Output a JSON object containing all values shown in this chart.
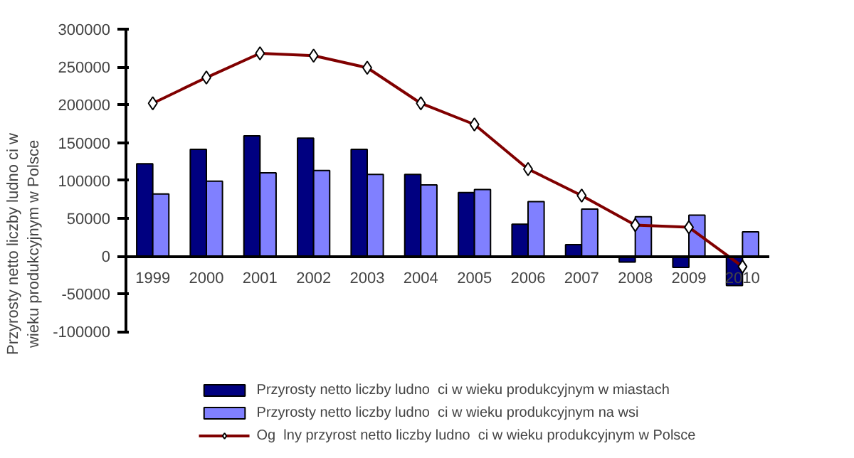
{
  "chart_data": {
    "type": "bar",
    "ylabel": "Przyrosty netto liczby ludno ci w\nwieku produkcyjnym w Polsce",
    "categories": [
      "1999",
      "2000",
      "2001",
      "2002",
      "2003",
      "2004",
      "2005",
      "2006",
      "2007",
      "2008",
      "2009",
      "2010"
    ],
    "series": [
      {
        "name": "Przyrosty netto liczby ludno  ci w wieku produkcyjnym w miastach",
        "color": "#000080",
        "values": [
          122000,
          141000,
          159000,
          156000,
          141000,
          108000,
          84000,
          42000,
          15000,
          -8000,
          -15000,
          -39000
        ]
      },
      {
        "name": "Przyrosty netto liczby ludno  ci w wieku produkcyjnym na wsi",
        "color": "#8080ff",
        "values": [
          82000,
          99000,
          110000,
          113000,
          108000,
          94000,
          88000,
          72000,
          62000,
          52000,
          54000,
          32000
        ]
      },
      {
        "name": "Og  lny przyrost netto liczby ludno  ci w wieku produkcyjnym w Polsce",
        "color": "#800000",
        "type": "line",
        "marker": "diamond",
        "values": [
          202000,
          236000,
          268000,
          265000,
          249000,
          202000,
          174000,
          115000,
          80000,
          41000,
          38000,
          -14000
        ]
      }
    ],
    "ylim": [
      -100000,
      300000
    ],
    "yticks": [
      -100000,
      -50000,
      0,
      50000,
      100000,
      150000,
      200000,
      250000,
      300000
    ],
    "grid": false,
    "legend": "bottom"
  }
}
